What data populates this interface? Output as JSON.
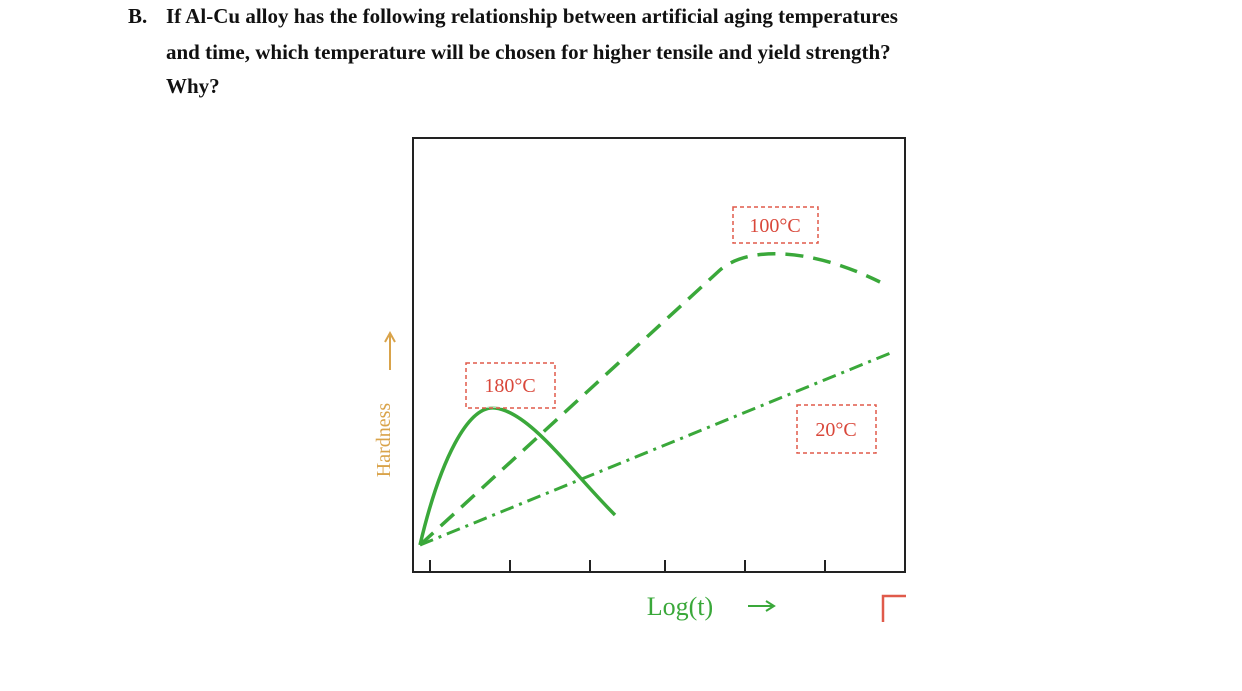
{
  "question": {
    "label": "B.",
    "lines": [
      "If Al-Cu alloy has the following relationship between artificial aging temperatures",
      "and time, which temperature will be chosen for higher tensile and yield strength?",
      "Why?"
    ]
  },
  "diagram": {
    "y_label": "Hardness",
    "x_label": "Log(t)",
    "curves": [
      {
        "label": "180°C"
      },
      {
        "label": "100°C"
      },
      {
        "label": "20°C"
      }
    ]
  }
}
